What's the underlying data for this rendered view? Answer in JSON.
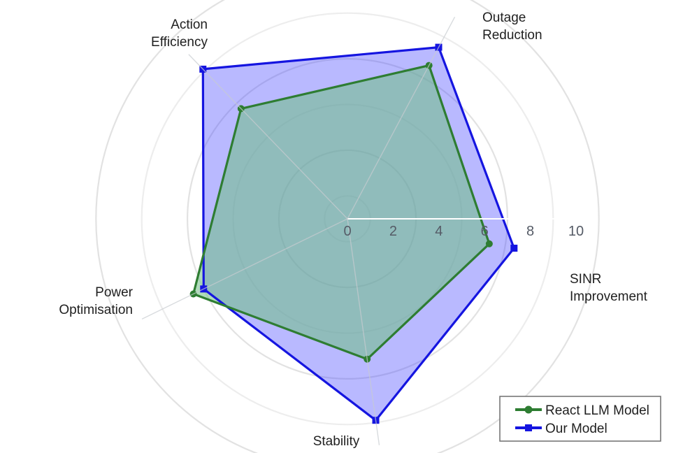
{
  "chart_data": {
    "type": "radar",
    "axes": [
      "SINR Improvement",
      "Outage Reduction",
      "Action Efficiency",
      "Power Optimisation",
      "Stability"
    ],
    "axis_label_lines": [
      [
        "SINR",
        "Improvement"
      ],
      [
        "Outage",
        "Reduction"
      ],
      [
        "Action",
        "Efficiency"
      ],
      [
        "Power",
        "Optimisation"
      ],
      [
        "Stability"
      ]
    ],
    "radial_range": [
      0,
      10
    ],
    "radial_ticks": [
      "0",
      "2",
      "4",
      "6",
      "8",
      "10"
    ],
    "radial_tick_values": [
      0,
      2,
      4,
      6,
      8,
      10
    ],
    "grid": true,
    "legend_placement": "bottom-right",
    "series": [
      {
        "name": "React LLM Model",
        "values": [
          6.3,
          7.6,
          6.7,
          7.5,
          6.2
        ],
        "color": "#2e7d32",
        "fill": "#6fbf84",
        "marker": "circle"
      },
      {
        "name": "Our Model",
        "values": [
          7.4,
          8.5,
          9.1,
          7.0,
          8.9
        ],
        "color": "#1515e0",
        "fill": "#4848ff",
        "marker": "square"
      }
    ]
  }
}
